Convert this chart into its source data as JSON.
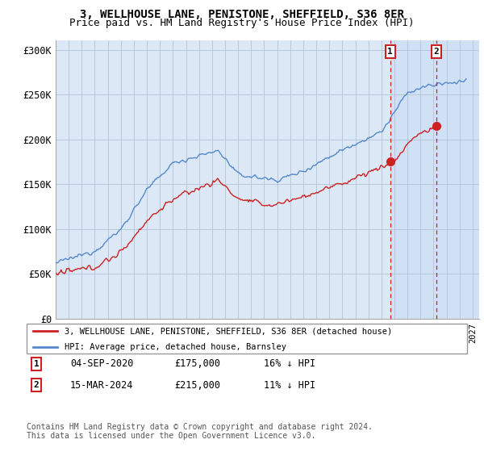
{
  "title": "3, WELLHOUSE LANE, PENISTONE, SHEFFIELD, S36 8ER",
  "subtitle": "Price paid vs. HM Land Registry's House Price Index (HPI)",
  "title_fontsize": 10,
  "subtitle_fontsize": 9,
  "ylabel_ticks": [
    "£0",
    "£50K",
    "£100K",
    "£150K",
    "£200K",
    "£250K",
    "£300K"
  ],
  "ytick_values": [
    0,
    50000,
    100000,
    150000,
    200000,
    250000,
    300000
  ],
  "ylim": [
    0,
    310000
  ],
  "xlim_start": 1995.0,
  "xlim_end": 2027.5,
  "background_color": "#dce8f5",
  "grid_color": "#b0c4d8",
  "hpi_color": "#5588cc",
  "price_color": "#cc2222",
  "marker1_date": 2020.67,
  "marker2_date": 2024.21,
  "marker1_price": 175000,
  "marker2_price": 215000,
  "legend_label1": "3, WELLHOUSE LANE, PENISTONE, SHEFFIELD, S36 8ER (detached house)",
  "legend_label2": "HPI: Average price, detached house, Barnsley",
  "table_row1": [
    "1",
    "04-SEP-2020",
    "£175,000",
    "16% ↓ HPI"
  ],
  "table_row2": [
    "2",
    "15-MAR-2024",
    "£215,000",
    "11% ↓ HPI"
  ],
  "footnote": "Contains HM Land Registry data © Crown copyright and database right 2024.\nThis data is licensed under the Open Government Licence v3.0.",
  "shade_start": 2020.67,
  "hatch_start": 2024.21
}
